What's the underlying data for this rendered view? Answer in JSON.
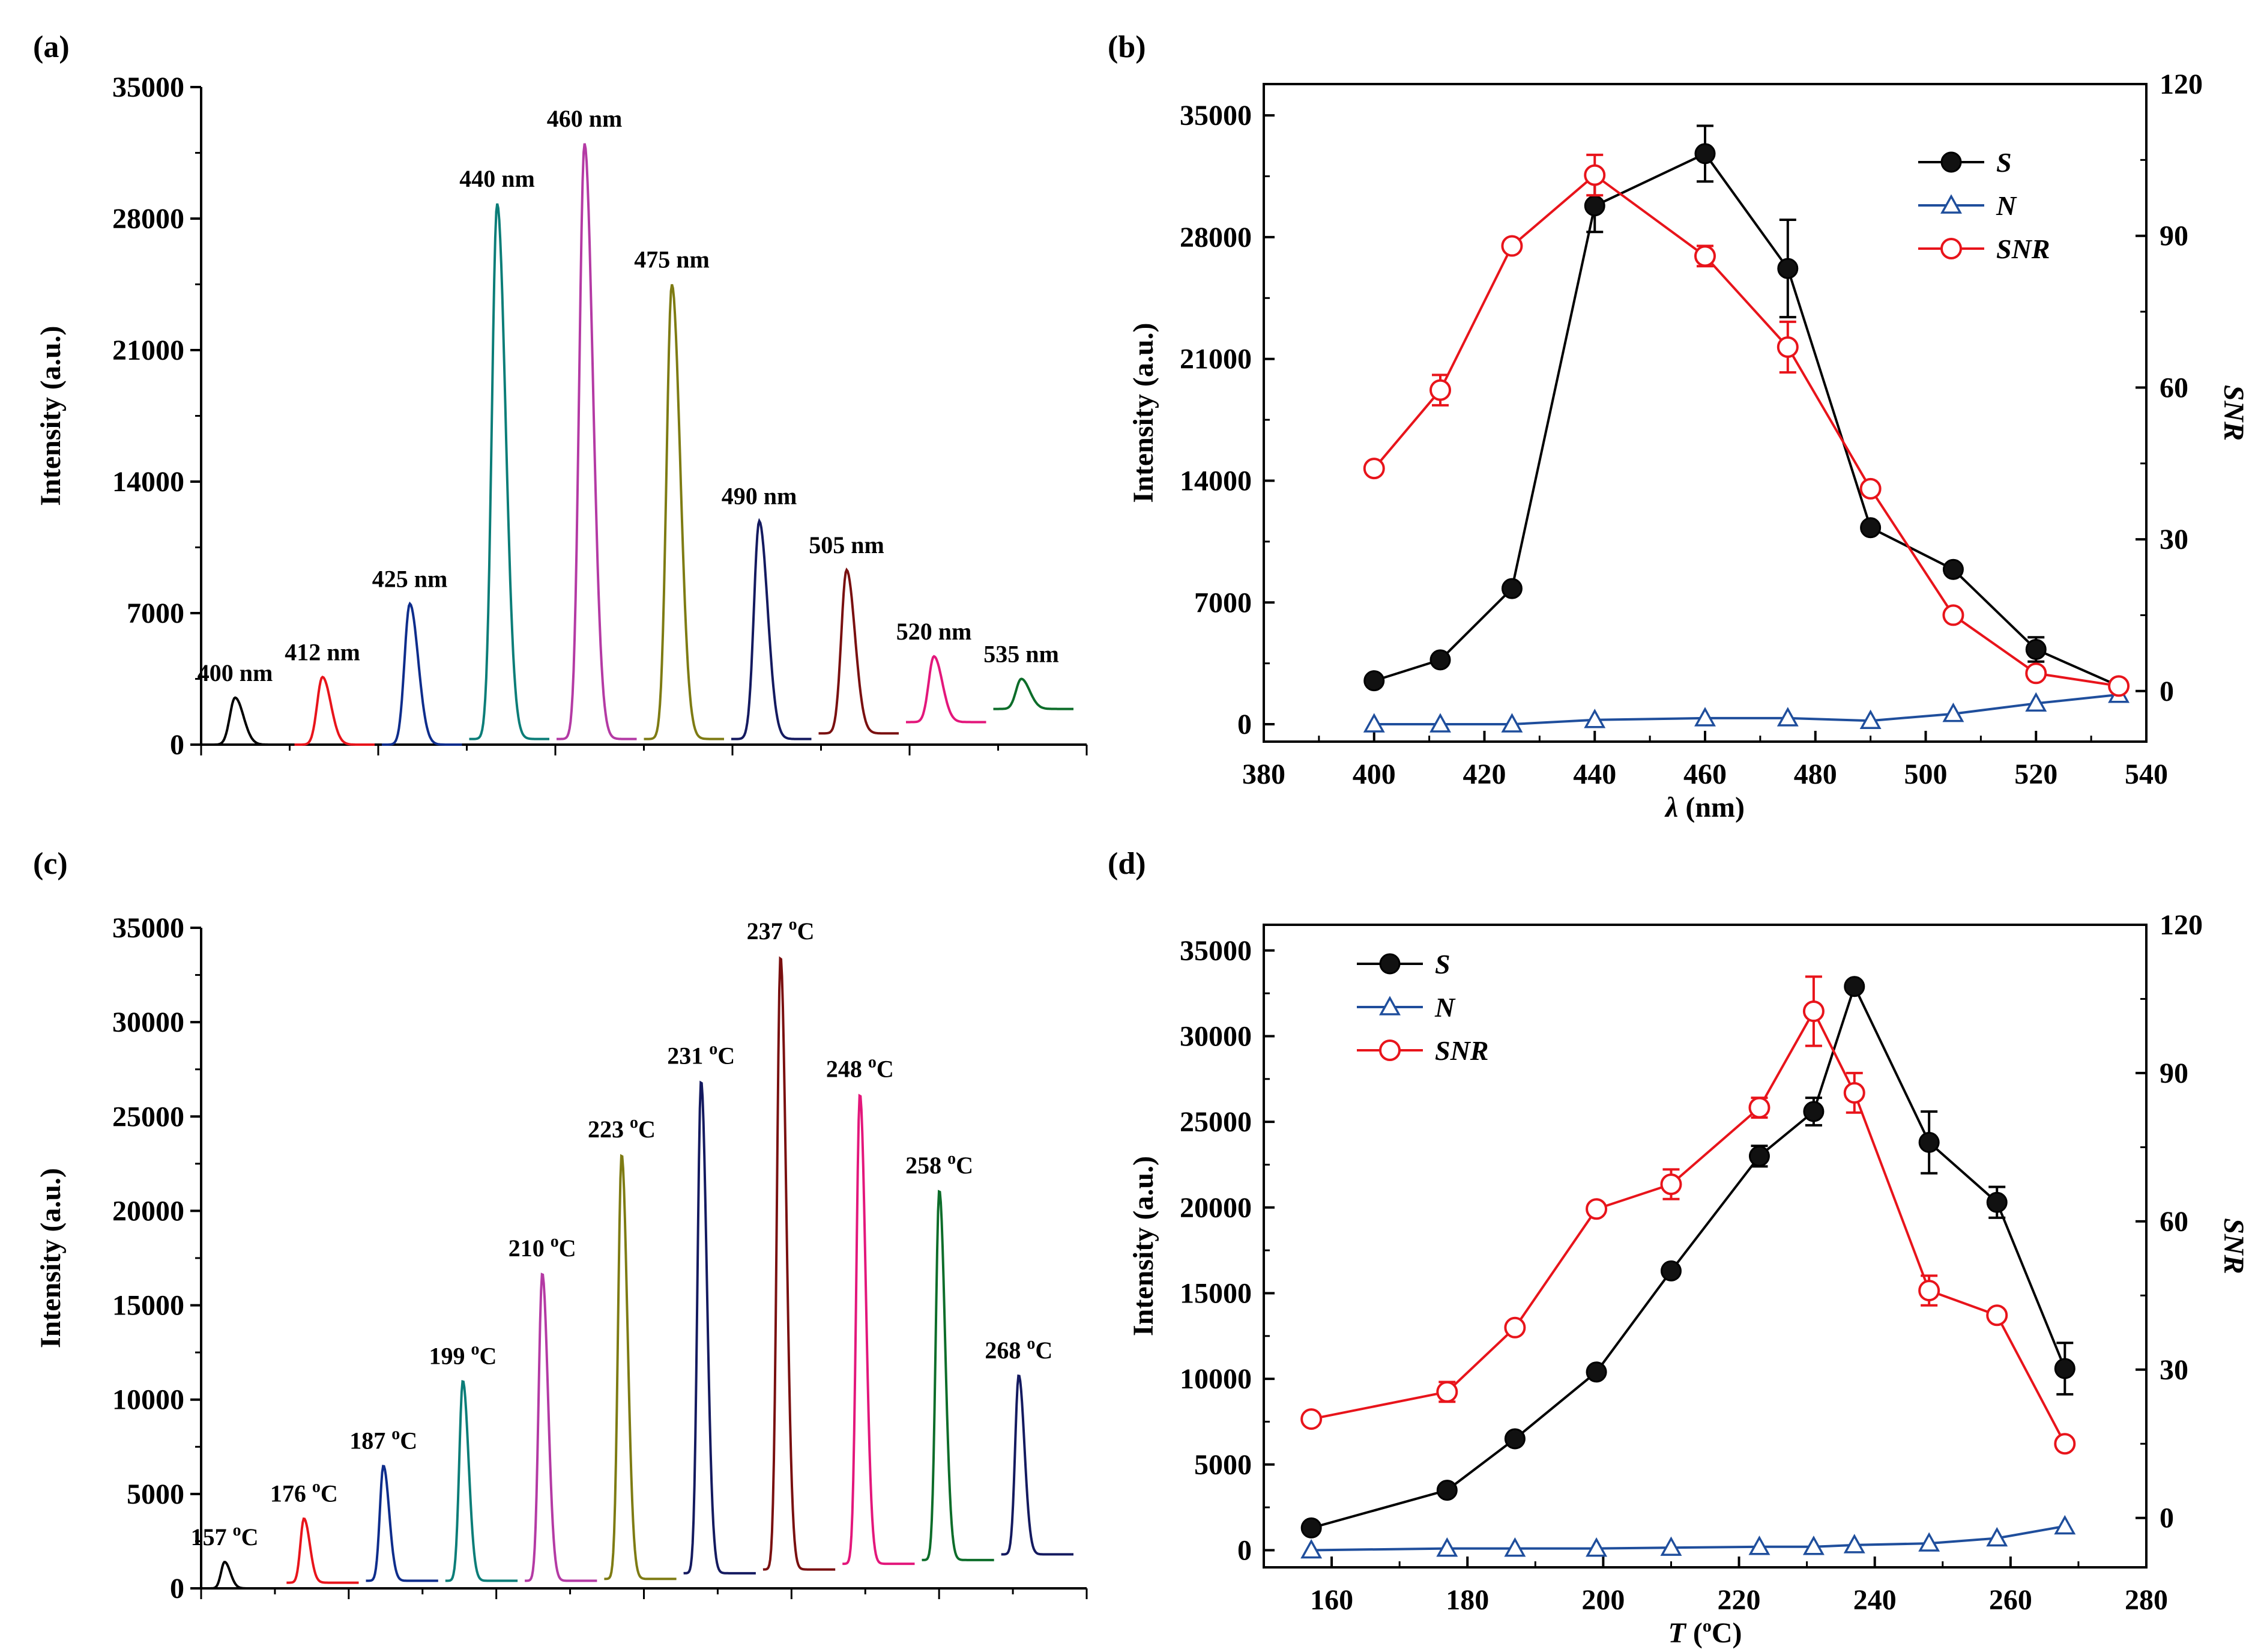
{
  "chart_data": [
    {
      "panel": "(a)",
      "type": "line",
      "title": "",
      "xlabel": "",
      "ylabel": "Intensity (a.u.)",
      "ylim": [
        0,
        35000
      ],
      "yticks": [
        "0",
        "7000",
        "14000",
        "21000",
        "28000",
        "35000"
      ],
      "series": [
        {
          "name": "400 nm",
          "label": "400 nm",
          "color": "#000000",
          "baseline": 0,
          "peak": 2500
        },
        {
          "name": "412 nm",
          "label": "412 nm",
          "color": "#e8141b",
          "baseline": 0,
          "peak": 3600
        },
        {
          "name": "425 nm",
          "label": "425 nm",
          "color": "#0e2d8c",
          "baseline": 0,
          "peak": 7500
        },
        {
          "name": "440 nm",
          "label": "440 nm",
          "color": "#0b7d78",
          "baseline": 300,
          "peak": 28800
        },
        {
          "name": "460 nm",
          "label": "460 nm",
          "color": "#b43aa4",
          "baseline": 300,
          "peak": 32000
        },
        {
          "name": "475 nm",
          "label": "475 nm",
          "color": "#7e7b13",
          "baseline": 300,
          "peak": 24500
        },
        {
          "name": "490 nm",
          "label": "490 nm",
          "color": "#141a60",
          "baseline": 300,
          "peak": 11900
        },
        {
          "name": "505 nm",
          "label": "505 nm",
          "color": "#7a1010",
          "baseline": 600,
          "peak": 9300
        },
        {
          "name": "520 nm",
          "label": "520 nm",
          "color": "#e3177b",
          "baseline": 1200,
          "peak": 4700
        },
        {
          "name": "535 nm",
          "label": "535 nm",
          "color": "#0d6d2a",
          "baseline": 1900,
          "peak": 3500
        }
      ]
    },
    {
      "panel": "(b)",
      "type": "line",
      "title": "",
      "xlabel": "λ (nm)",
      "ylabel": "Intensity (a.u.)",
      "y2label": "SNR",
      "xlim": [
        380,
        540
      ],
      "ylim": [
        -1000,
        36800
      ],
      "y2lim": [
        -10,
        120
      ],
      "xticks": [
        "380",
        "400",
        "420",
        "440",
        "460",
        "480",
        "500",
        "520",
        "540"
      ],
      "yticks": [
        "0",
        "7000",
        "14000",
        "21000",
        "28000",
        "35000"
      ],
      "y2ticks": [
        "0",
        "30",
        "60",
        "90",
        "120"
      ],
      "x": [
        400,
        412,
        425,
        440,
        460,
        475,
        490,
        505,
        520,
        535
      ],
      "series": [
        {
          "name": "S",
          "axis": "left",
          "color": "#000000",
          "marker": "filled-circle",
          "values": [
            2500,
            3700,
            7800,
            29800,
            32800,
            26200,
            11300,
            8900,
            4300,
            2200
          ],
          "errors": [
            0,
            0,
            0,
            1500,
            1600,
            2800,
            0,
            0,
            700,
            0
          ]
        },
        {
          "name": "N",
          "axis": "left",
          "color": "#1f4e9c",
          "marker": "open-triangle",
          "values": [
            0,
            0,
            0,
            250,
            350,
            350,
            200,
            600,
            1200,
            1700
          ],
          "errors": [
            0,
            0,
            0,
            0,
            0,
            0,
            0,
            0,
            0,
            0
          ]
        },
        {
          "name": "SNR",
          "axis": "right",
          "color": "#e8141b",
          "marker": "open-circle",
          "values": [
            44,
            59.5,
            88,
            102,
            86,
            68,
            40,
            15,
            3.5,
            1
          ],
          "errors": [
            0,
            3,
            0,
            4,
            2,
            5,
            0,
            0,
            0,
            0
          ]
        }
      ],
      "legend": [
        "S",
        "N",
        "SNR"
      ],
      "legend_position": "top-right"
    },
    {
      "panel": "(c)",
      "type": "line",
      "title": "",
      "xlabel": "",
      "ylabel": "Intensity (a.u.)",
      "ylim": [
        0,
        35000
      ],
      "yticks": [
        "0",
        "5000",
        "10000",
        "15000",
        "20000",
        "25000",
        "30000",
        "35000"
      ],
      "series": [
        {
          "name": "157 oC",
          "label": "157 ",
          "color": "#000000",
          "baseline": 0,
          "peak": 1400
        },
        {
          "name": "176 oC",
          "label": "176 ",
          "color": "#e8141b",
          "baseline": 300,
          "peak": 3700
        },
        {
          "name": "187 oC",
          "label": "187 ",
          "color": "#0e2d8c",
          "baseline": 400,
          "peak": 6500
        },
        {
          "name": "199 oC",
          "label": "199 ",
          "color": "#0b7d78",
          "baseline": 400,
          "peak": 11000
        },
        {
          "name": "210 oC",
          "label": "210 ",
          "color": "#b43aa4",
          "baseline": 400,
          "peak": 16700
        },
        {
          "name": "223 oC",
          "label": "223 ",
          "color": "#7e7b13",
          "baseline": 500,
          "peak": 23000
        },
        {
          "name": "231 oC",
          "label": "231 ",
          "color": "#141a60",
          "baseline": 800,
          "peak": 26900
        },
        {
          "name": "237 oC",
          "label": "237 ",
          "color": "#7a1010",
          "baseline": 1000,
          "peak": 33500
        },
        {
          "name": "248 oC",
          "label": "248 ",
          "color": "#e3177b",
          "baseline": 1300,
          "peak": 26200
        },
        {
          "name": "258 oC",
          "label": "258 ",
          "color": "#0d6d2a",
          "baseline": 1500,
          "peak": 21100
        },
        {
          "name": "268 oC",
          "label": "268 ",
          "color": "#141a60",
          "baseline": 1800,
          "peak": 11300
        }
      ],
      "unit_sup": "o",
      "unit_c": "C"
    },
    {
      "panel": "(d)",
      "type": "line",
      "title": "",
      "xlabel_var": "T",
      "xlabel_rest": " (",
      "xlabel_sup": "o",
      "xlabel_end": "C)",
      "ylabel": "Intensity (a.u.)",
      "y2label": "SNR",
      "xlim": [
        150,
        280
      ],
      "ylim": [
        -1000,
        36500
      ],
      "y2lim": [
        -10,
        120
      ],
      "xticks": [
        "160",
        "180",
        "200",
        "220",
        "240",
        "260",
        "280"
      ],
      "yticks": [
        "0",
        "5000",
        "10000",
        "15000",
        "20000",
        "25000",
        "30000",
        "35000"
      ],
      "y2ticks": [
        "0",
        "30",
        "60",
        "90",
        "120"
      ],
      "x": [
        157,
        177,
        187,
        199,
        210,
        223,
        231,
        237,
        248,
        258,
        268
      ],
      "series": [
        {
          "name": "S",
          "axis": "left",
          "color": "#000000",
          "marker": "filled-circle",
          "values": [
            1300,
            3500,
            6500,
            10400,
            16300,
            23000,
            25600,
            32900,
            23800,
            20300,
            10600
          ],
          "errors": [
            0,
            0,
            0,
            0,
            0,
            600,
            800,
            0,
            1800,
            900,
            1500
          ]
        },
        {
          "name": "N",
          "axis": "left",
          "color": "#1f4e9c",
          "marker": "open-triangle",
          "values": [
            0,
            100,
            100,
            100,
            150,
            200,
            200,
            300,
            400,
            700,
            1400
          ],
          "errors": [
            0,
            0,
            0,
            0,
            0,
            0,
            0,
            0,
            0,
            0,
            0
          ]
        },
        {
          "name": "SNR",
          "axis": "right",
          "color": "#e8141b",
          "marker": "open-circle",
          "values": [
            20,
            25.5,
            38.5,
            62.5,
            67.5,
            83,
            102.5,
            86,
            46,
            41,
            15
          ],
          "errors": [
            0,
            2,
            0,
            0,
            3,
            2,
            7,
            4,
            3,
            0,
            0
          ]
        }
      ],
      "legend": [
        "S",
        "N",
        "SNR"
      ],
      "legend_position": "top-left"
    }
  ]
}
